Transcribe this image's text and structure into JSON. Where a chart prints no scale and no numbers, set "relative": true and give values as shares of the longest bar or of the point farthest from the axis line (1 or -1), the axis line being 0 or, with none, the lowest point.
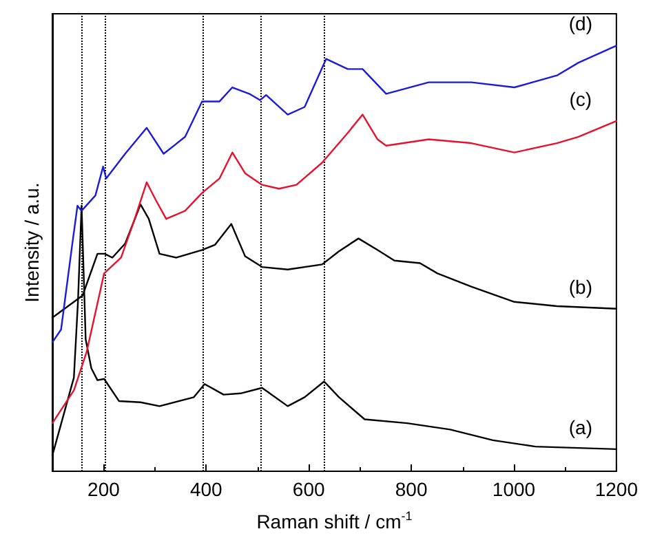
{
  "chart_data": {
    "type": "line",
    "relative": true,
    "xlabel": "Raman shift / cm$^{-1}$",
    "ylabel": "Intensity / a.u.",
    "xlim": [
      100,
      1200
    ],
    "xticks": [
      200,
      400,
      600,
      800,
      1000,
      1200
    ],
    "tick_labels": "x",
    "grid": false,
    "legend": false,
    "marker": "none",
    "line_style": "solid",
    "ref_lines": [
      {
        "axis": "x",
        "value": 157,
        "line_style": "dotted",
        "color": "#000000"
      },
      {
        "axis": "x",
        "value": 202,
        "line_style": "dotted",
        "color": "#000000"
      },
      {
        "axis": "x",
        "value": 393,
        "line_style": "dotted",
        "color": "#000000"
      },
      {
        "axis": "x",
        "value": 507,
        "line_style": "dotted",
        "color": "#000000"
      },
      {
        "axis": "x",
        "value": 631,
        "line_style": "dotted",
        "color": "#000000"
      }
    ],
    "series": [
      {
        "name": "(a)",
        "color": "#000000",
        "x": [
          100,
          142,
          150,
          157,
          165,
          176,
          188,
          201,
          230,
          272,
          309,
          376,
          397,
          434,
          467,
          509,
          559,
          592,
          630,
          659,
          709,
          792,
          876,
          959,
          1042,
          1200
        ],
        "values": [
          0.037,
          0.22,
          0.4,
          0.624,
          0.31,
          0.242,
          0.214,
          0.217,
          0.165,
          0.162,
          0.153,
          0.174,
          0.205,
          0.18,
          0.183,
          0.196,
          0.153,
          0.174,
          0.211,
          0.174,
          0.122,
          0.113,
          0.098,
          0.073,
          0.058,
          0.052
        ]
      },
      {
        "name": "(b)",
        "color": "#000000",
        "x": [
          100,
          159,
          188,
          202,
          217,
          242,
          272,
          288,
          309,
          342,
          392,
          417,
          449,
          476,
          509,
          559,
          626,
          659,
          697,
          734,
          767,
          817,
          851,
          917,
          1001,
          1084,
          1200
        ],
        "values": [
          0.361,
          0.413,
          0.511,
          0.511,
          0.502,
          0.535,
          0.627,
          0.593,
          0.511,
          0.502,
          0.52,
          0.532,
          0.581,
          0.505,
          0.48,
          0.474,
          0.486,
          0.517,
          0.547,
          0.52,
          0.495,
          0.489,
          0.465,
          0.434,
          0.398,
          0.388,
          0.382
        ]
      },
      {
        "name": "(c)",
        "color": "#e8112d",
        "x": [
          100,
          142,
          167,
          201,
          234,
          259,
          284,
          301,
          322,
          359,
          392,
          426,
          451,
          476,
          509,
          542,
          576,
          626,
          676,
          705,
          734,
          751,
          834,
          917,
          1001,
          1084,
          1126,
          1200
        ],
        "values": [
          0.113,
          0.19,
          0.281,
          0.465,
          0.502,
          0.587,
          0.679,
          0.639,
          0.593,
          0.612,
          0.654,
          0.688,
          0.749,
          0.7,
          0.673,
          0.664,
          0.673,
          0.725,
          0.795,
          0.838,
          0.78,
          0.765,
          0.78,
          0.771,
          0.749,
          0.771,
          0.786,
          0.823
        ]
      },
      {
        "name": "(d)",
        "color": "#1a1adc",
        "x": [
          100,
          117,
          138,
          149,
          157,
          184,
          199,
          205,
          242,
          284,
          317,
          359,
          392,
          426,
          451,
          484,
          505,
          517,
          559,
          592,
          634,
          676,
          705,
          751,
          834,
          917,
          1001,
          1084,
          1126,
          1200
        ],
        "values": [
          0.303,
          0.333,
          0.526,
          0.624,
          0.612,
          0.648,
          0.716,
          0.688,
          0.746,
          0.807,
          0.746,
          0.786,
          0.869,
          0.869,
          0.902,
          0.887,
          0.872,
          0.884,
          0.838,
          0.856,
          0.969,
          0.945,
          0.945,
          0.887,
          0.914,
          0.914,
          0.902,
          0.93,
          0.96,
          1
        ]
      }
    ]
  }
}
